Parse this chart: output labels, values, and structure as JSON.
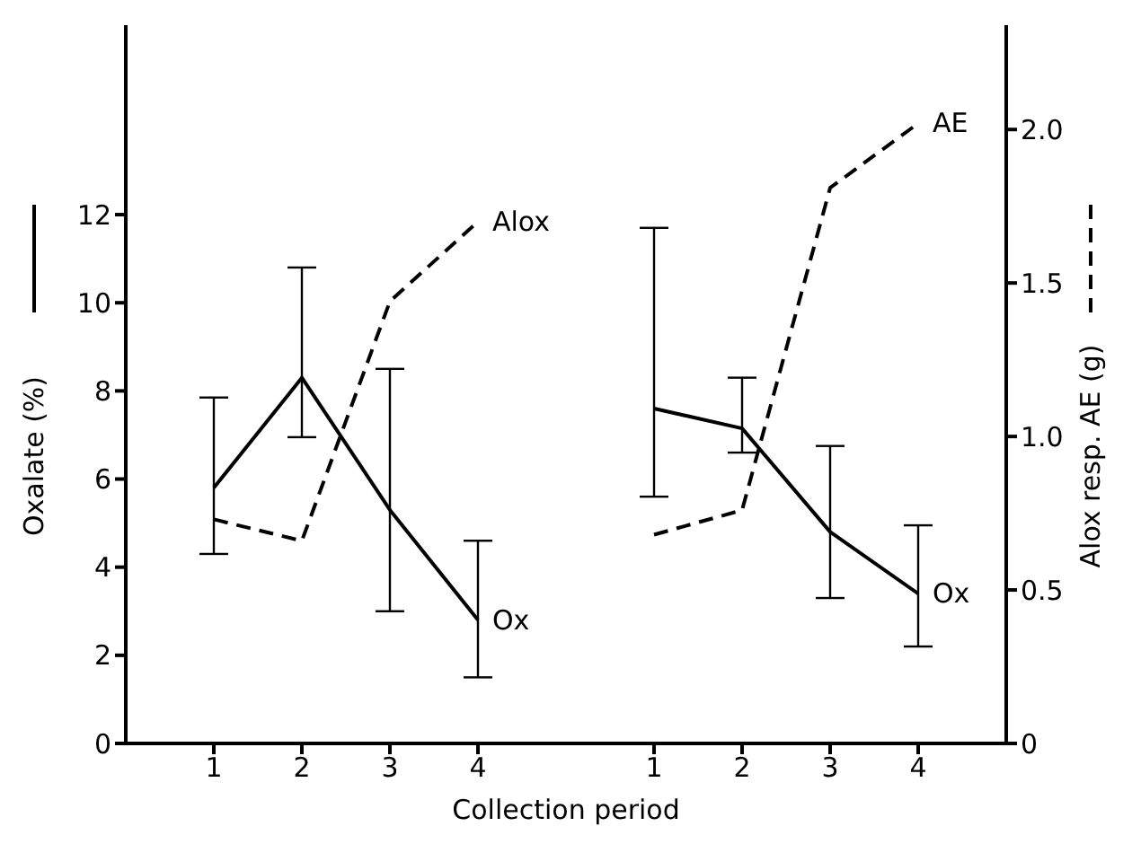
{
  "chart_data": {
    "type": "line",
    "xlabel": "Collection period",
    "ylabel": "Oxalate (%)",
    "y2label": "Alox resp. AE (g)",
    "categories": [
      "1",
      "2",
      "3",
      "4",
      null,
      "1",
      "2",
      "3",
      "4"
    ],
    "series": [
      {
        "name": "Ox",
        "color": "#000000",
        "line_style": "solid",
        "values": [
          5.8,
          8.3,
          5.3,
          2.8,
          null,
          null,
          null,
          null,
          null
        ],
        "errors": [
          [
            4.3,
            7.85
          ],
          [
            6.95,
            10.8
          ],
          [
            3.0,
            8.5
          ],
          [
            1.5,
            4.6
          ],
          null,
          null,
          null,
          null,
          null
        ]
      },
      {
        "name": "Alox",
        "color": "#000000",
        "line_style": "dashed",
        "axis": "y2",
        "values": [
          0.73,
          0.66,
          1.44,
          1.7,
          null,
          null,
          null,
          null,
          null
        ]
      },
      {
        "name": "Ox",
        "color": "#000000",
        "line_style": "solid",
        "values": [
          null,
          null,
          null,
          null,
          null,
          7.6,
          7.15,
          4.8,
          3.4
        ],
        "errors": [
          null,
          null,
          null,
          null,
          null,
          [
            5.6,
            11.7
          ],
          [
            6.6,
            8.3
          ],
          [
            3.3,
            6.75
          ],
          [
            2.2,
            4.95
          ]
        ]
      },
      {
        "name": "AE",
        "color": "#000000",
        "line_style": "dashed",
        "axis": "y2",
        "values": [
          null,
          null,
          null,
          null,
          null,
          0.68,
          0.76,
          1.81,
          2.02
        ]
      }
    ],
    "ylim": [
      0,
      16.3
    ],
    "yticks": [
      0,
      2,
      4,
      6,
      8,
      10,
      12
    ],
    "y2lim": [
      0,
      2.34
    ],
    "y2ticks": [
      0,
      {
        "value": 0.5,
        "label": "0.5"
      },
      {
        "value": 1,
        "label": "1.0"
      },
      {
        "value": 1.5,
        "label": "1.5"
      },
      {
        "value": 2,
        "label": "2.0"
      }
    ],
    "marker": "none",
    "grid": false,
    "legend": false
  }
}
